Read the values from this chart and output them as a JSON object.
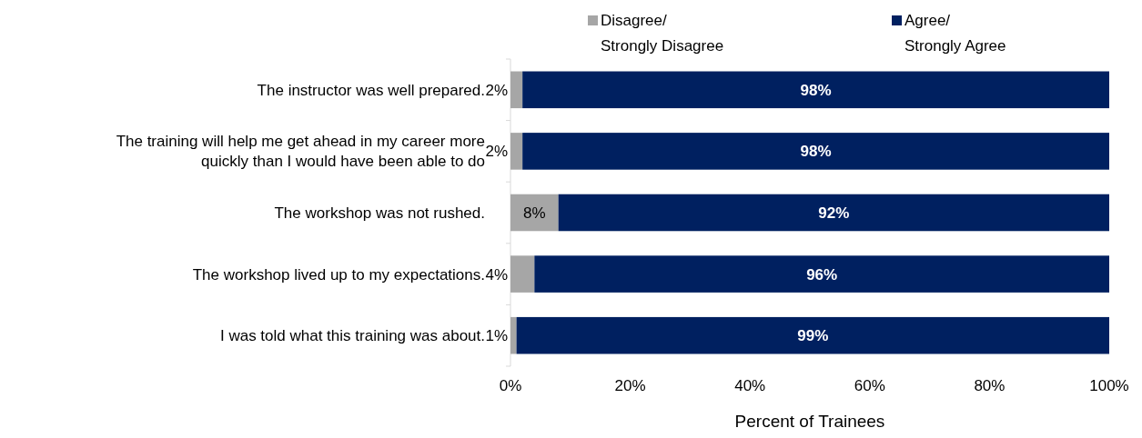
{
  "chart_data": {
    "type": "bar",
    "orientation": "horizontal",
    "stacked": true,
    "categories": [
      "The instructor was well prepared.",
      "The training will help me get ahead in my career more quickly than I would have been able to do",
      "The workshop was not rushed.",
      "The workshop lived up to my expectations.",
      "I was told what this training was about."
    ],
    "series": [
      {
        "name": "Disagree/ Strongly Disagree",
        "color": "#a6a6a6",
        "values": [
          2,
          2,
          8,
          4,
          1
        ],
        "value_labels": [
          "2%",
          "2%",
          "8%",
          "4%",
          "1%"
        ]
      },
      {
        "name": "Agree/ Strongly Agree",
        "color": "#002060",
        "values": [
          98,
          98,
          92,
          96,
          99
        ],
        "value_labels": [
          "98%",
          "98%",
          "92%",
          "96%",
          "99%"
        ]
      }
    ],
    "xlim": [
      0,
      100
    ],
    "xticks": [
      {
        "value": 0,
        "label": "0%"
      },
      {
        "value": 20,
        "label": "20%"
      },
      {
        "value": 40,
        "label": "40%"
      },
      {
        "value": 60,
        "label": "60%"
      },
      {
        "value": 80,
        "label": "80%"
      },
      {
        "value": 100,
        "label": "100%"
      }
    ],
    "xlabel": "Percent of Trainees",
    "legend": "top",
    "grid": false
  }
}
